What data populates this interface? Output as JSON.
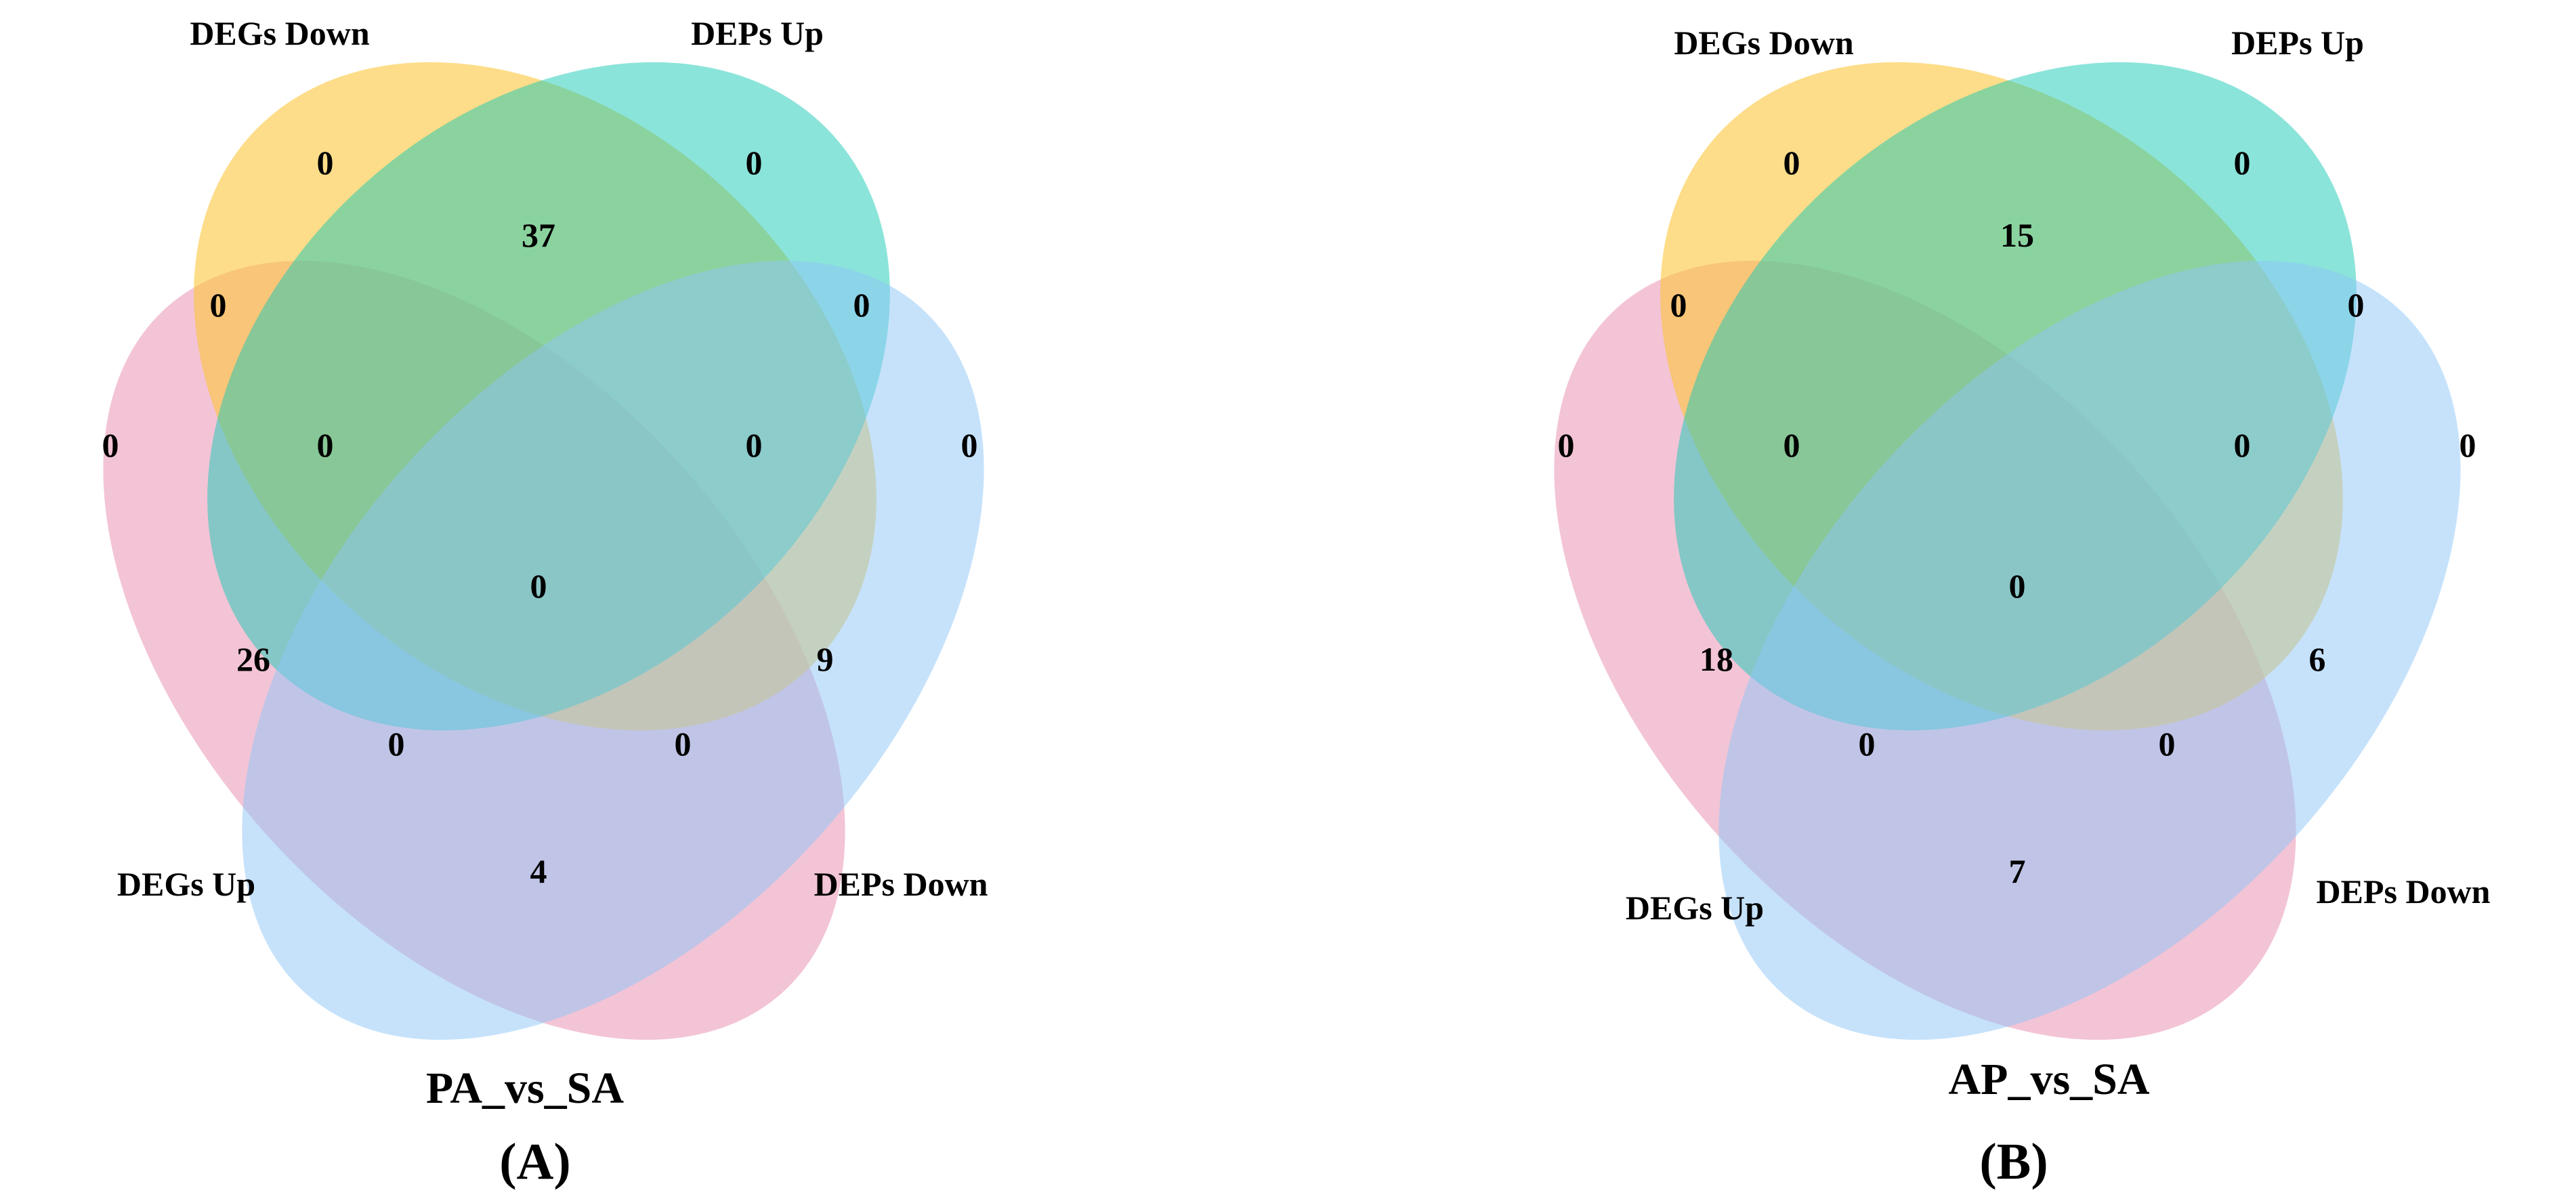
{
  "colors": {
    "degs_up": "#e889ad",
    "degs_down": "#fbc73a",
    "deps_up": "#17c9b5",
    "deps_down": "#8dc5f7"
  },
  "panels": [
    {
      "title": "PA_vs_SA",
      "letter": "(A)",
      "set_labels": {
        "degs_down": "DEGs Down",
        "deps_up": "DEPs Up",
        "degs_up": "DEGs Up",
        "deps_down": "DEPs Down"
      },
      "counts": {
        "degs_down_only": "0",
        "deps_up_only": "0",
        "degs_down_deps_up": "37",
        "degs_up_degs_down": "0",
        "deps_up_deps_down": "0",
        "degs_up_only": "0",
        "degs_up_degs_down_deps_up": "0",
        "degs_down_deps_up_deps_down": "0",
        "deps_down_only": "0",
        "all_four": "0",
        "degs_up_deps_up": "26",
        "degs_down_deps_down": "9",
        "degs_up_deps_up_deps_down": "0",
        "degs_up_degs_down_deps_down": "0",
        "degs_up_deps_down": "4"
      }
    },
    {
      "title": "AP_vs_SA",
      "letter": "(B)",
      "set_labels": {
        "degs_down": "DEGs Down",
        "deps_up": "DEPs Up",
        "degs_up": "DEGs Up",
        "deps_down": "DEPs Down"
      },
      "counts": {
        "degs_down_only": "0",
        "deps_up_only": "0",
        "degs_down_deps_up": "15",
        "degs_up_degs_down": "0",
        "deps_up_deps_down": "0",
        "degs_up_only": "0",
        "degs_up_degs_down_deps_up": "0",
        "degs_down_deps_up_deps_down": "0",
        "deps_down_only": "0",
        "all_four": "0",
        "degs_up_deps_up": "18",
        "degs_down_deps_down": "6",
        "degs_up_deps_up_deps_down": "0",
        "degs_up_degs_down_deps_down": "0",
        "degs_up_deps_down": "7"
      }
    }
  ]
}
